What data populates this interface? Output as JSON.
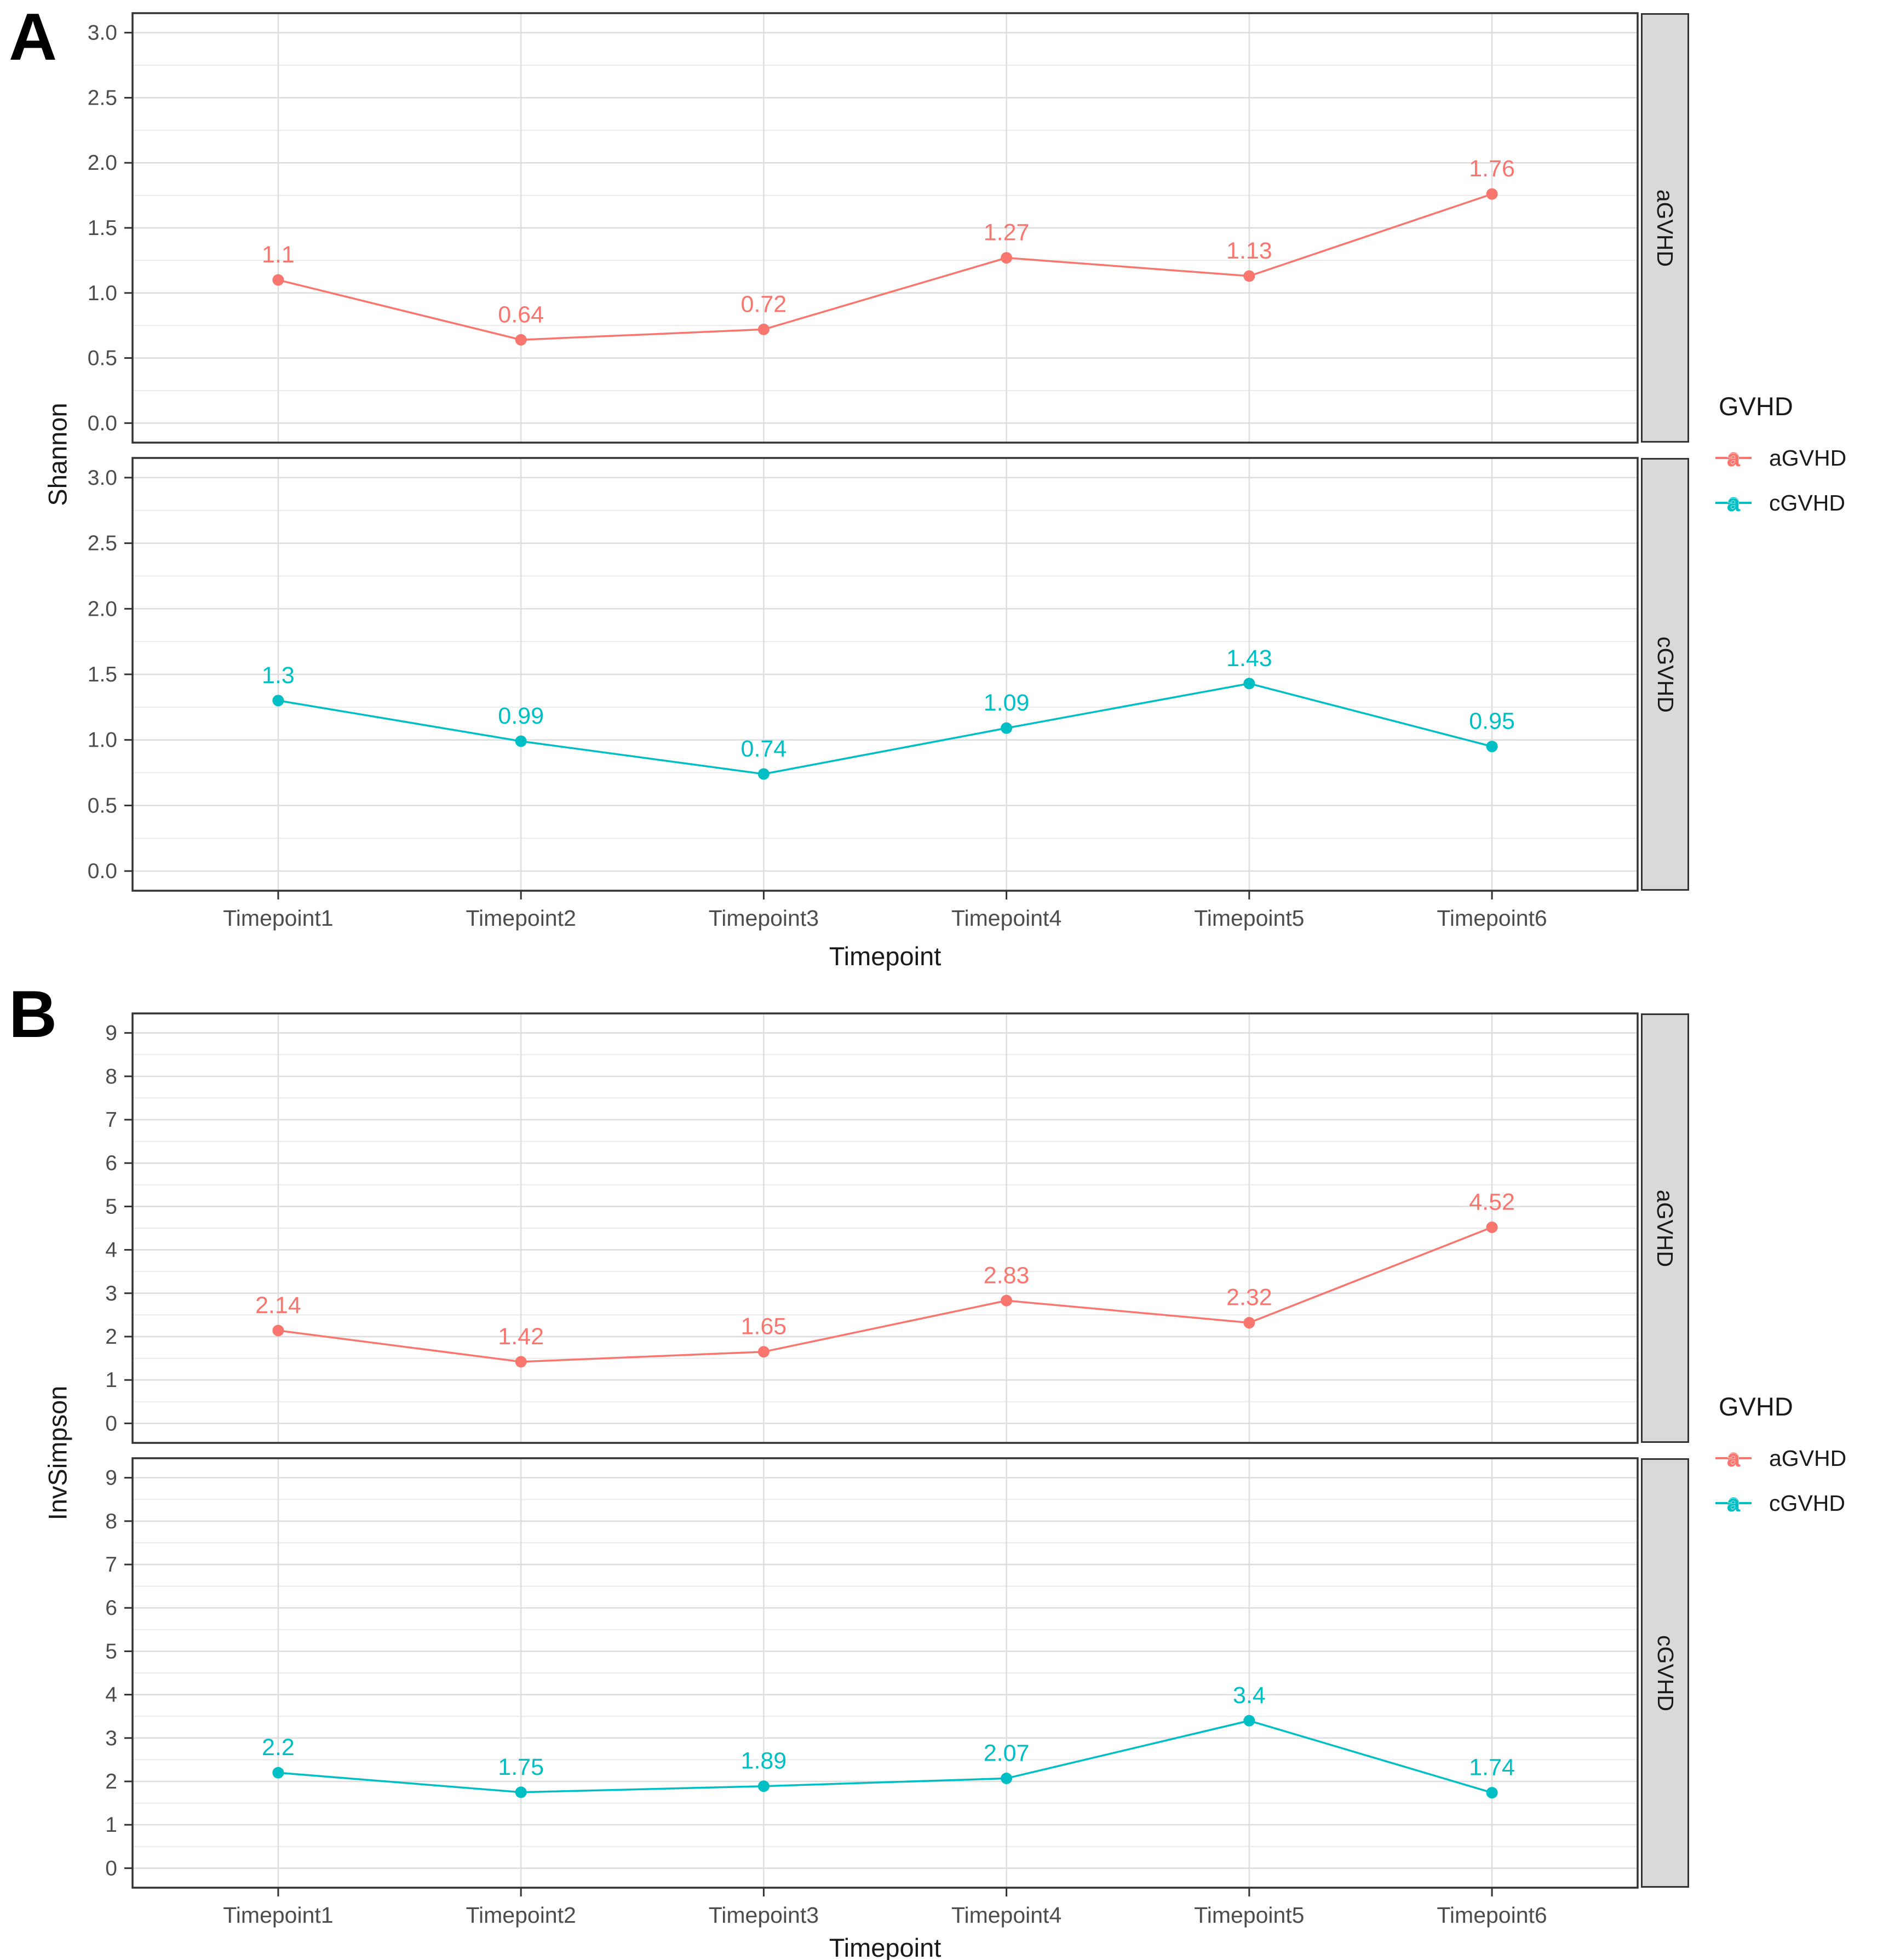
{
  "figure": {
    "panel_a_letter": "A",
    "panel_b_letter": "B"
  },
  "colors": {
    "agvhd": "#F8766D",
    "cgvhd": "#00BFC4",
    "strip_bg": "#D9D9D9",
    "grid_major": "#DDDDDD",
    "grid_minor": "#EBEBEB",
    "panel_border": "#333333",
    "axis_text": "#4D4D4D",
    "text": "#1A1A1A"
  },
  "chart_data": [
    {
      "id": "A",
      "type": "line",
      "panel_letter": "A",
      "xlabel": "Timepoint",
      "ylabel": "Shannon",
      "categories": [
        "Timepoint1",
        "Timepoint2",
        "Timepoint3",
        "Timepoint4",
        "Timepoint5",
        "Timepoint6"
      ],
      "ylim": [
        0,
        3
      ],
      "yticks": [
        "0.0",
        "0.5",
        "1.0",
        "1.5",
        "2.0",
        "2.5",
        "3.0"
      ],
      "ytick_values": [
        0,
        0.5,
        1,
        1.5,
        2,
        2.5,
        3
      ],
      "grid": true,
      "legend": {
        "title": "GVHD",
        "position": "right",
        "entries": [
          {
            "label": "aGVHD",
            "color": "#F8766D"
          },
          {
            "label": "cGVHD",
            "color": "#00BFC4"
          }
        ]
      },
      "facets": [
        {
          "strip": "aGVHD",
          "series": "aGVHD",
          "color": "#F8766D",
          "values": [
            1.1,
            0.64,
            0.72,
            1.27,
            1.13,
            1.76
          ],
          "labels": [
            "1.1",
            "0.64",
            "0.72",
            "1.27",
            "1.13",
            "1.76"
          ]
        },
        {
          "strip": "cGVHD",
          "series": "cGVHD",
          "color": "#00BFC4",
          "values": [
            1.3,
            0.99,
            0.74,
            1.09,
            1.43,
            0.95
          ],
          "labels": [
            "1.3",
            "0.99",
            "0.74",
            "1.09",
            "1.43",
            "0.95"
          ]
        }
      ]
    },
    {
      "id": "B",
      "type": "line",
      "panel_letter": "B",
      "xlabel": "Timepoint",
      "ylabel": "InvSimpson",
      "categories": [
        "Timepoint1",
        "Timepoint2",
        "Timepoint3",
        "Timepoint4",
        "Timepoint5",
        "Timepoint6"
      ],
      "ylim": [
        0,
        9
      ],
      "yticks": [
        "0",
        "1",
        "2",
        "3",
        "4",
        "5",
        "6",
        "7",
        "8",
        "9"
      ],
      "ytick_values": [
        0,
        1,
        2,
        3,
        4,
        5,
        6,
        7,
        8,
        9
      ],
      "grid": true,
      "legend": {
        "title": "GVHD",
        "position": "right",
        "entries": [
          {
            "label": "aGVHD",
            "color": "#F8766D"
          },
          {
            "label": "cGVHD",
            "color": "#00BFC4"
          }
        ]
      },
      "facets": [
        {
          "strip": "aGVHD",
          "series": "aGVHD",
          "color": "#F8766D",
          "values": [
            2.14,
            1.42,
            1.65,
            2.83,
            2.32,
            4.52
          ],
          "labels": [
            "2.14",
            "1.42",
            "1.65",
            "2.83",
            "2.32",
            "4.52"
          ]
        },
        {
          "strip": "cGVHD",
          "series": "cGVHD",
          "color": "#00BFC4",
          "values": [
            2.2,
            1.75,
            1.89,
            2.07,
            3.4,
            1.74
          ],
          "labels": [
            "2.2",
            "1.75",
            "1.89",
            "2.07",
            "3.4",
            "1.74"
          ]
        }
      ]
    }
  ]
}
